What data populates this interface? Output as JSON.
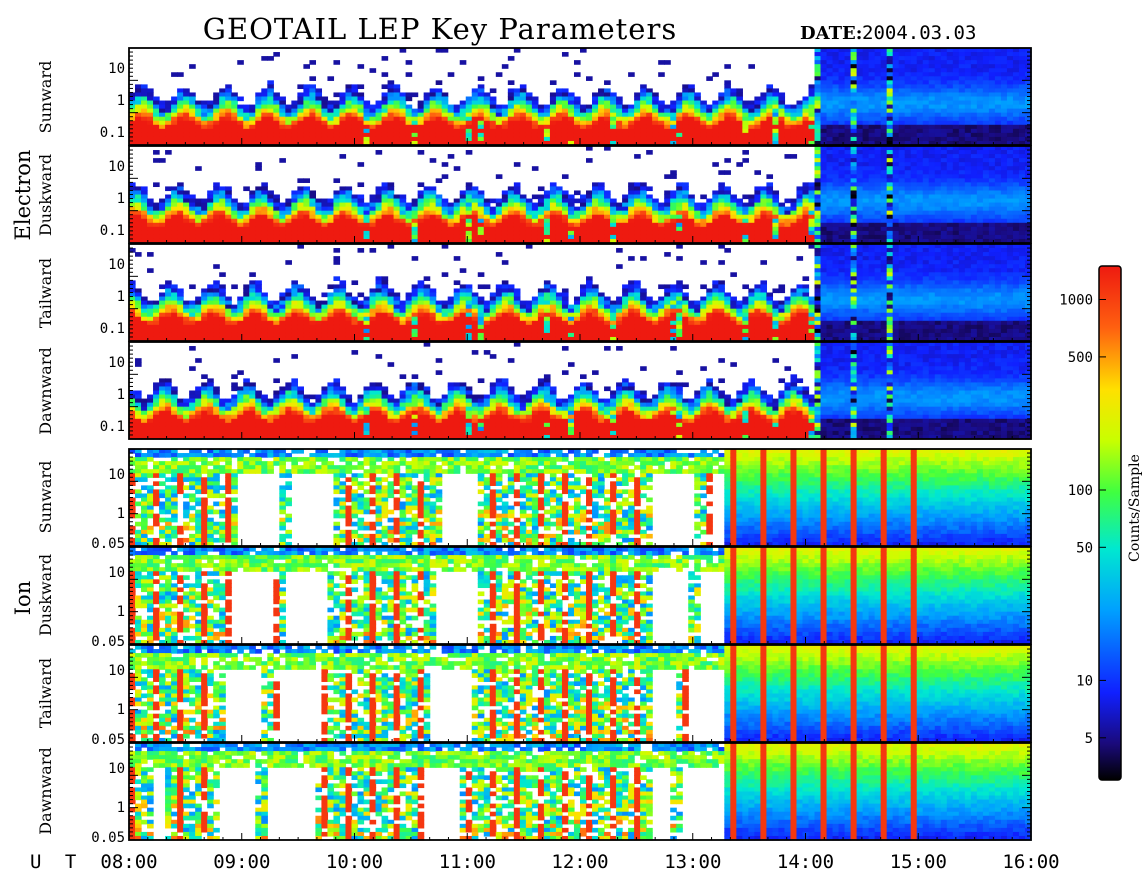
{
  "title": "GEOTAIL LEP Key Parameters",
  "date_label": "DATE:",
  "date_value": "2004.03.03",
  "time_axis_label": "U T",
  "groups": [
    {
      "name": "Electron",
      "panels": [
        "Sunward",
        "Duskward",
        "Tailward",
        "Dawnward"
      ],
      "y_ticks": [
        "10",
        "1",
        "0.1"
      ]
    },
    {
      "name": "Ion",
      "panels": [
        "Sunward",
        "Duskward",
        "Tailward",
        "Dawnward"
      ],
      "y_ticks": [
        "10",
        "1",
        "0.05"
      ]
    }
  ],
  "colorbar": {
    "label": "Counts/Sample",
    "ticks": [
      "1000",
      "500",
      "100",
      "50",
      "10",
      "5"
    ]
  },
  "chart_data": {
    "type": "heatmap",
    "title": "GEOTAIL LEP Key Parameters",
    "x_ticks": [
      "08:00",
      "09:00",
      "10:00",
      "11:00",
      "12:00",
      "13:00",
      "14:00",
      "15:00",
      "16:00"
    ],
    "x_range": [
      "08:00",
      "16:00"
    ],
    "electron_energy_ticks": [
      10,
      1,
      0.1
    ],
    "ion_energy_ticks": [
      10,
      1,
      0.05
    ],
    "y_scale": "log",
    "colorbar_range": [
      3,
      1500
    ],
    "colorbar_ticks": [
      1000,
      500,
      100,
      50,
      10,
      5
    ],
    "colorbar_scale": "log",
    "colorbar_label": "Counts/Sample",
    "panels": [
      "Electron Sunward",
      "Electron Duskward",
      "Electron Tailward",
      "Electron Dawnward",
      "Ion Sunward",
      "Ion Duskward",
      "Ion Tailward",
      "Ion Dawnward"
    ]
  }
}
